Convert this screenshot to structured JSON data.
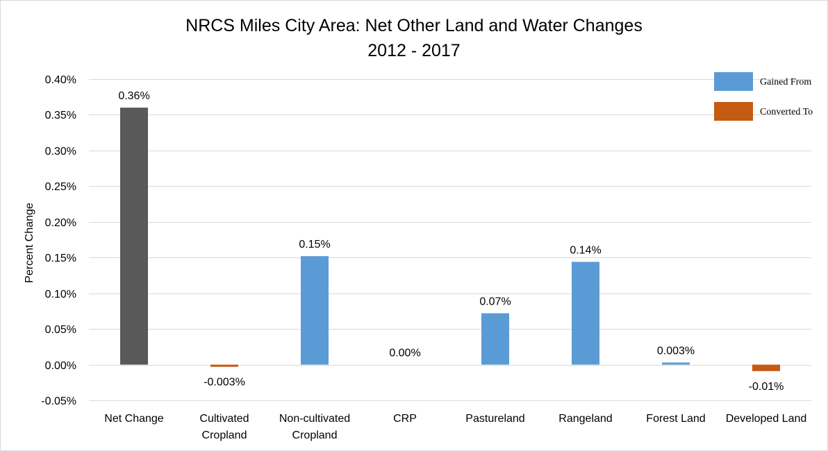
{
  "chart_data": {
    "type": "bar",
    "title": "NRCS Miles City Area: Net Other Land and Water Changes",
    "subtitle": "2012 - 2017",
    "xlabel": "",
    "ylabel": "Percent Change",
    "ylim": [
      -0.05,
      0.4
    ],
    "ytick_labels": [
      "-0.05%",
      "0.00%",
      "0.05%",
      "0.10%",
      "0.15%",
      "0.20%",
      "0.25%",
      "0.30%",
      "0.35%",
      "0.40%"
    ],
    "ytick_values": [
      -0.05,
      0.0,
      0.05,
      0.1,
      0.15,
      0.2,
      0.25,
      0.3,
      0.35,
      0.4
    ],
    "grid": true,
    "legend_position": "top-right",
    "categories": [
      [
        "Net Change"
      ],
      [
        "Cultivated",
        "Cropland"
      ],
      [
        "Non-cultivated",
        "Cropland"
      ],
      [
        "CRP"
      ],
      [
        "Pastureland"
      ],
      [
        "Rangeland"
      ],
      [
        "Forest Land"
      ],
      [
        "Developed Land"
      ]
    ],
    "values": [
      0.36,
      -0.003,
      0.152,
      0.0,
      0.072,
      0.144,
      0.003,
      -0.009
    ],
    "data_labels": [
      "0.36%",
      "-0.003%",
      "0.15%",
      "0.00%",
      "0.07%",
      "0.14%",
      "0.003%",
      "-0.01%"
    ],
    "bar_kind": [
      "net",
      "converted",
      "gained",
      "gained",
      "gained",
      "gained",
      "gained",
      "converted"
    ],
    "legend": [
      {
        "label": "Gained From",
        "kind": "gained"
      },
      {
        "label": "Converted To",
        "kind": "converted"
      }
    ],
    "colors": {
      "net": "#595959",
      "gained": "#5b9bd5",
      "converted": "#c55a11"
    }
  }
}
